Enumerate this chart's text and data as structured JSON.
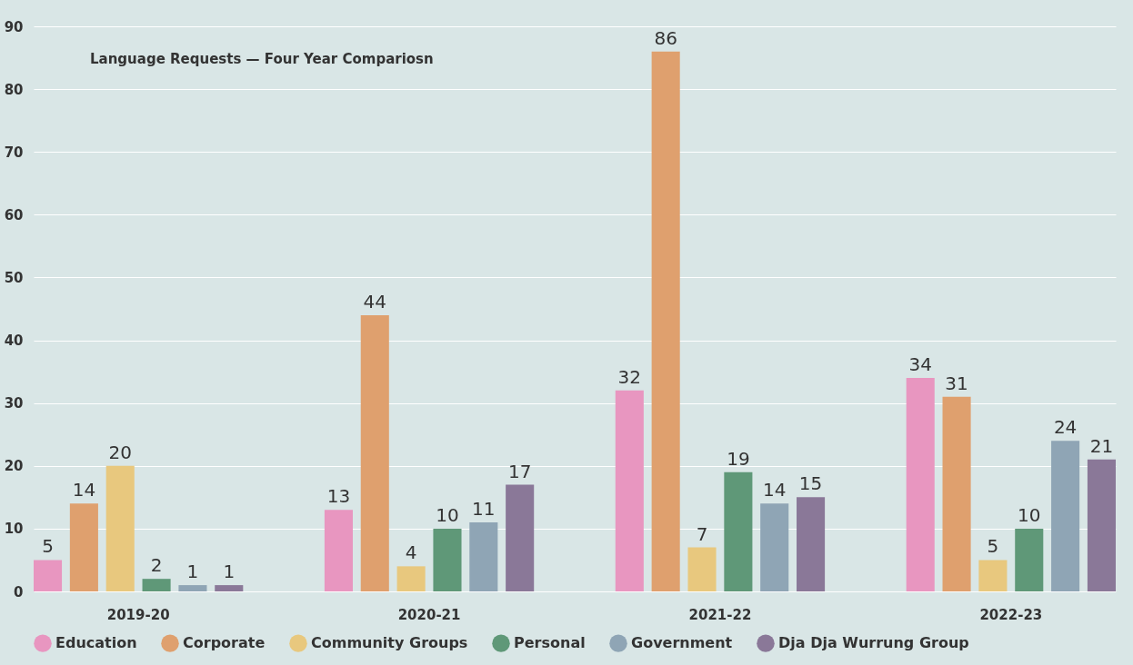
{
  "chart_data": {
    "type": "bar",
    "title": "Language Requests — Four Year Compariosn",
    "categories": [
      "2019-20",
      "2020-21",
      "2021-22",
      "2022-23"
    ],
    "series": [
      {
        "name": "Education",
        "color": "#e896c0",
        "values": [
          5,
          13,
          32,
          34
        ]
      },
      {
        "name": "Corporate",
        "color": "#dfa06e",
        "values": [
          14,
          44,
          86,
          31
        ]
      },
      {
        "name": "Community Groups",
        "color": "#e8c87e",
        "values": [
          20,
          4,
          7,
          5
        ]
      },
      {
        "name": "Personal",
        "color": "#5f9878",
        "values": [
          2,
          10,
          19,
          10
        ]
      },
      {
        "name": "Government",
        "color": "#8fa5b5",
        "values": [
          1,
          11,
          14,
          24
        ]
      },
      {
        "name": "Dja Dja Wurrung Group",
        "color": "#8a7898",
        "values": [
          1,
          17,
          15,
          21
        ]
      }
    ],
    "ylim": [
      0,
      90
    ],
    "yticks": [
      0,
      10,
      20,
      30,
      40,
      50,
      60,
      70,
      80,
      90
    ],
    "grid": "y",
    "legend": "bottom",
    "data_labels": true
  }
}
